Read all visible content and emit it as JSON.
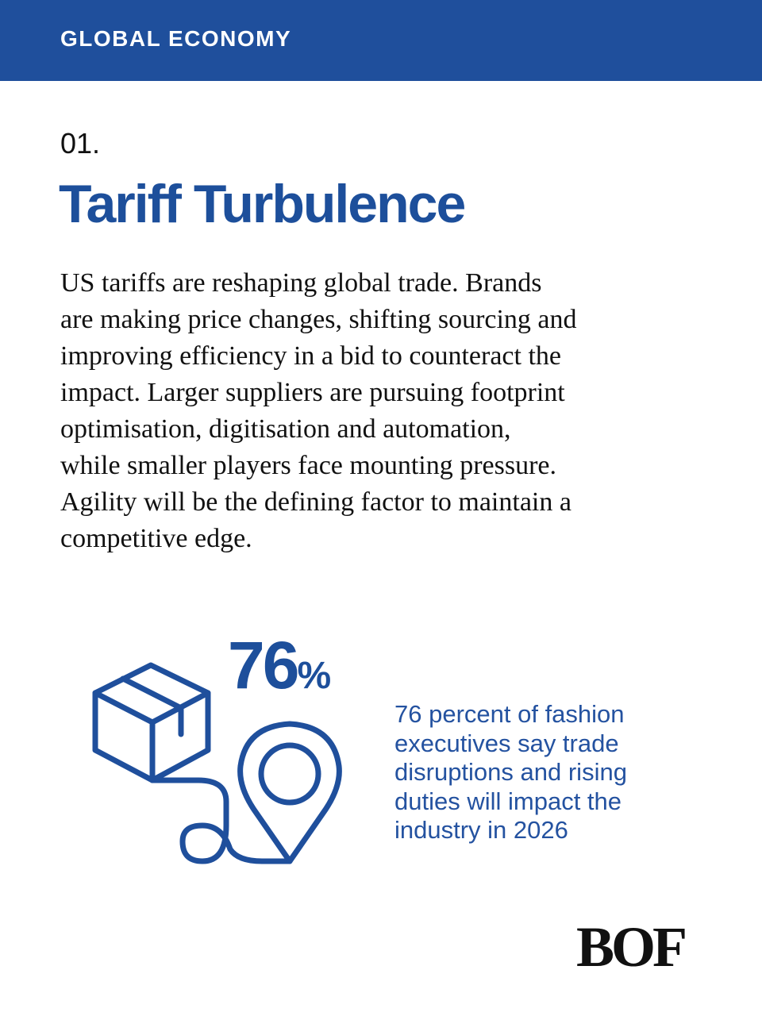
{
  "header": {
    "title": "GLOBAL ECONOMY"
  },
  "article": {
    "number": "01.",
    "title": "Tariff Turbulence",
    "body_lines": [
      "US tariffs are reshaping global trade. Brands",
      "are making price changes, shifting sourcing and",
      "improving efficiency in a bid to counteract the",
      "impact. Larger suppliers are pursuing footprint",
      "optimisation, digitisation and automation,",
      "while smaller players face mounting pressure.",
      "Agility will be the defining factor to maintain a",
      "competitive edge."
    ]
  },
  "stat": {
    "value": "76",
    "unit": "%",
    "description_lines": [
      "76 percent of fashion",
      "executives say trade",
      "disruptions and rising",
      "duties will impact the",
      "industry in 2026"
    ]
  },
  "logo": "BOF"
}
